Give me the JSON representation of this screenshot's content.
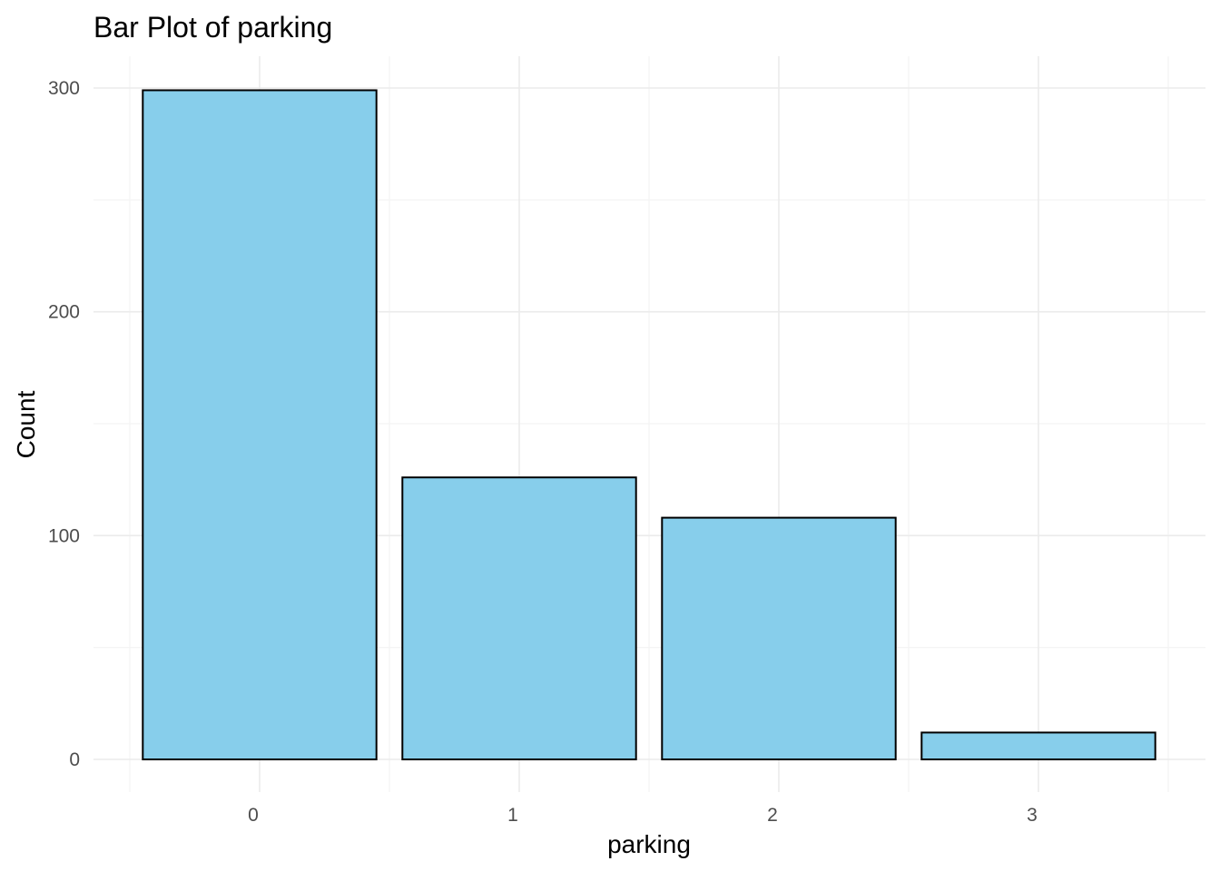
{
  "chart_data": {
    "type": "bar",
    "title": "Bar Plot of parking",
    "xlabel": "parking",
    "ylabel": "Count",
    "categories": [
      "0",
      "1",
      "2",
      "3"
    ],
    "values": [
      299,
      126,
      108,
      12
    ],
    "ylim": [
      0,
      300
    ],
    "yticks": [
      0,
      100,
      200,
      300
    ],
    "grid": true,
    "legend": "none",
    "colors": {
      "bar_fill": "#87CEEB",
      "bar_outline": "#000000",
      "grid": "#ebebeb",
      "tick_text": "#4d4d4d",
      "background": "#ffffff"
    }
  }
}
